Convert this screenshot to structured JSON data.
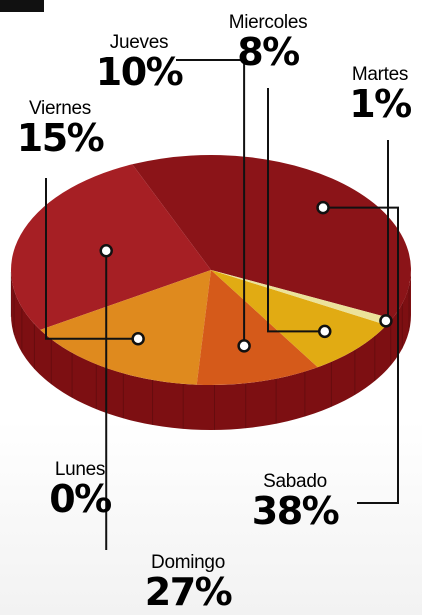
{
  "chart_data": {
    "type": "pie",
    "slices": [
      {
        "name": "Sabado",
        "label": "38%",
        "value": 38,
        "color": "#8b1418"
      },
      {
        "name": "Domingo",
        "label": "27%",
        "value": 27,
        "color": "#a61f24"
      },
      {
        "name": "Lunes",
        "label": "0%",
        "value": 0,
        "color": "#a61f24"
      },
      {
        "name": "Viernes",
        "label": "15%",
        "value": 15,
        "color": "#df8a1e"
      },
      {
        "name": "Jueves",
        "label": "10%",
        "value": 10,
        "color": "#d55a1a"
      },
      {
        "name": "Miercoles",
        "label": "8%",
        "value": 8,
        "color": "#e1ab13"
      },
      {
        "name": "Martes",
        "label": "1%",
        "value": 1,
        "color": "#ece29a"
      }
    ],
    "side_color": "#7d0f12",
    "leader_color": "#111111"
  }
}
